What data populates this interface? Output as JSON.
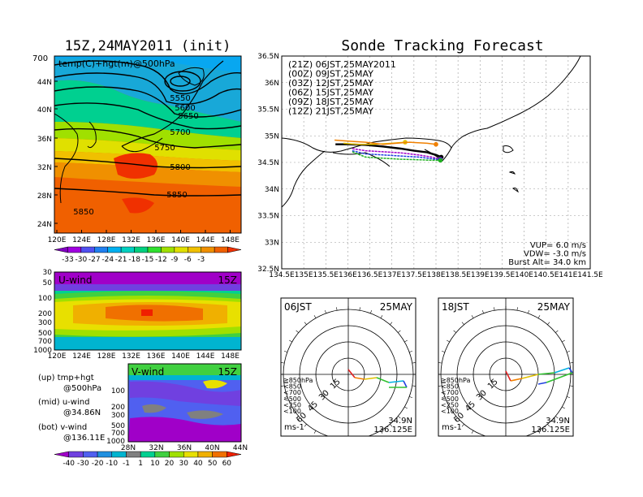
{
  "left_panel": {
    "title": "15Z,24MAY2011 (init)",
    "map_label": "temp(C)+hgt(m)@500hPa",
    "corner_label": "700",
    "lat_ticks": [
      "44N",
      "40N",
      "36N",
      "32N",
      "28N",
      "24N"
    ],
    "lon_ticks": [
      "120E",
      "124E",
      "128E",
      "132E",
      "136E",
      "140E",
      "144E",
      "148E"
    ],
    "contour_labels": [
      "5550",
      "5600",
      "5650",
      "5700",
      "5750",
      "5800",
      "5850",
      "5850"
    ],
    "temp_colorbar": {
      "labels": [
        "-33",
        "-30",
        "-27",
        "-24",
        "-21",
        "-18",
        "-15",
        "-12",
        "-9",
        "-6",
        "-3"
      ],
      "colors": [
        "#8000c0",
        "#a000e0",
        "#5050f0",
        "#2080f0",
        "#00b0f0",
        "#00d0c0",
        "#00d080",
        "#30e030",
        "#a0e000",
        "#e0e000",
        "#f0c000",
        "#f09000",
        "#f06000",
        "#f03000"
      ]
    },
    "uwind": {
      "label": "U-wind",
      "time": "15Z",
      "p_ticks": [
        "30",
        "50",
        "100",
        "200",
        "300",
        "500",
        "700",
        "1000"
      ],
      "lon_ticks": [
        "120E",
        "124E",
        "128E",
        "132E",
        "136E",
        "140E",
        "144E",
        "148E"
      ]
    },
    "vwind": {
      "label": "V-wind",
      "time": "15Z",
      "p_ticks": [
        "100",
        "200",
        "300",
        "500",
        "700",
        "1000"
      ],
      "lat_ticks": [
        "28N",
        "32N",
        "36N",
        "40N",
        "44N"
      ]
    },
    "legend_lines": [
      "(up) tmp+hgt",
      "@500hPa",
      "(mid) u-wind",
      "@34.86N",
      "(bot) v-wind",
      "@136.11E"
    ],
    "wind_colorbar": {
      "labels": [
        "-40",
        "-30",
        "-20",
        "-10",
        "-1",
        "1",
        "10",
        "20",
        "30",
        "40",
        "50",
        "60"
      ],
      "colors": [
        "#a000c8",
        "#7040e0",
        "#5060f0",
        "#2090e0",
        "#00b4d0",
        "#808080",
        "#00d090",
        "#40d040",
        "#a0e000",
        "#e8e000",
        "#f0b000",
        "#f07000",
        "#f02000"
      ]
    }
  },
  "right_top": {
    "title": "Sonde Tracking Forecast",
    "lat_ticks": [
      "36.5N",
      "36N",
      "35.5N",
      "35N",
      "34.5N",
      "34N",
      "33.5N",
      "33N",
      "32.5N"
    ],
    "lon_ticks": [
      "134.5E",
      "135E",
      "135.5E",
      "136E",
      "136.5E",
      "137E",
      "137.5E",
      "138E",
      "138.5E",
      "139E",
      "139.5E",
      "140E",
      "140.5E",
      "141E",
      "141.5E"
    ],
    "legend": [
      {
        "text": "(21Z) 06JST,25MAY2011",
        "color": "#000000"
      },
      {
        "text": "(00Z) 09JST,25MAY",
        "color": "#a000c8"
      },
      {
        "text": "(03Z) 12JST,25MAY",
        "color": "#2040e0"
      },
      {
        "text": "(06Z) 15JST,25MAY",
        "color": "#20b020"
      },
      {
        "text": "(09Z) 18JST,25MAY",
        "color": "#e0c000"
      },
      {
        "text": "(12Z) 21JST,25MAY",
        "color": "#f08000"
      }
    ],
    "info": [
      "VUP= 6.0 m/s",
      "VDW= -3.0 m/s",
      "Burst Alt= 34.0 km"
    ]
  },
  "hodographs": [
    {
      "time_label": "06JST",
      "date_label": "25MAY",
      "ring_labels": [
        "15",
        "30",
        "45",
        "60"
      ],
      "levels": [
        {
          "text": "≧850hPa",
          "color": "#e02020"
        },
        {
          "text": "<850",
          "color": "#f08000"
        },
        {
          "text": "<700",
          "color": "#e0c000"
        },
        {
          "text": "<500",
          "color": "#30c030"
        },
        {
          "text": "<250",
          "color": "#00b0e0"
        },
        {
          "text": "<100",
          "color": "#2040e0"
        }
      ],
      "unit": "ms-1",
      "lat": "34.9N",
      "lon": "136.125E"
    },
    {
      "time_label": "18JST",
      "date_label": "25MAY",
      "ring_labels": [
        "15",
        "30",
        "45",
        "60"
      ],
      "levels": [
        {
          "text": "≧850hPa",
          "color": "#e02020"
        },
        {
          "text": "<850",
          "color": "#f08000"
        },
        {
          "text": "<700",
          "color": "#e0c000"
        },
        {
          "text": "<500",
          "color": "#30c030"
        },
        {
          "text": "<250",
          "color": "#00b0e0"
        },
        {
          "text": "<100",
          "color": "#2040e0"
        }
      ],
      "unit": "ms-1",
      "lat": "34.9N",
      "lon": "136.125E"
    }
  ],
  "chart_data": [
    {
      "type": "heatmap",
      "title": "15Z,24MAY2011 (init)",
      "xlabel": "",
      "ylabel": "",
      "xlim": [
        120,
        149
      ],
      "ylim": [
        22,
        46
      ]
    },
    {
      "type": "line",
      "title": "Sonde Tracking Forecast",
      "xlim": [
        134.5,
        141.5
      ],
      "ylim": [
        32.5,
        36.5
      ],
      "series": [
        {
          "color": "#000000",
          "x": [
            135.72,
            136.0,
            136.4,
            136.8,
            137.2,
            137.5,
            137.8,
            138.0,
            138.12
          ],
          "y": [
            34.84,
            34.84,
            34.83,
            34.8,
            34.76,
            34.72,
            34.69,
            34.64,
            34.6
          ]
        },
        {
          "color": "#a000c8",
          "x": [
            136.1,
            136.4,
            136.8,
            137.2,
            137.6,
            137.9,
            138.1
          ],
          "y": [
            34.76,
            34.72,
            34.7,
            34.68,
            34.64,
            34.6,
            34.56
          ]
        },
        {
          "color": "#2040e0",
          "x": [
            136.1,
            136.4,
            136.8,
            137.2,
            137.6,
            137.9,
            138.1
          ],
          "y": [
            34.72,
            34.66,
            34.64,
            34.62,
            34.6,
            34.57,
            34.55
          ]
        },
        {
          "color": "#20b020",
          "x": [
            136.1,
            136.4,
            136.8,
            137.2,
            137.6,
            137.9,
            138.1
          ],
          "y": [
            34.7,
            34.6,
            34.58,
            34.56,
            34.55,
            34.54,
            34.54
          ]
        },
        {
          "color": "#e0c000",
          "x": [
            135.9,
            136.2,
            136.6,
            137.0,
            137.3
          ],
          "y": [
            34.86,
            34.84,
            34.84,
            34.86,
            34.88
          ]
        },
        {
          "color": "#f08000",
          "x": [
            135.7,
            136.0,
            136.4,
            136.8,
            137.1,
            137.4,
            137.8,
            138.0
          ],
          "y": [
            34.92,
            34.9,
            34.88,
            34.84,
            34.86,
            34.88,
            34.86,
            34.84
          ]
        }
      ]
    }
  ]
}
